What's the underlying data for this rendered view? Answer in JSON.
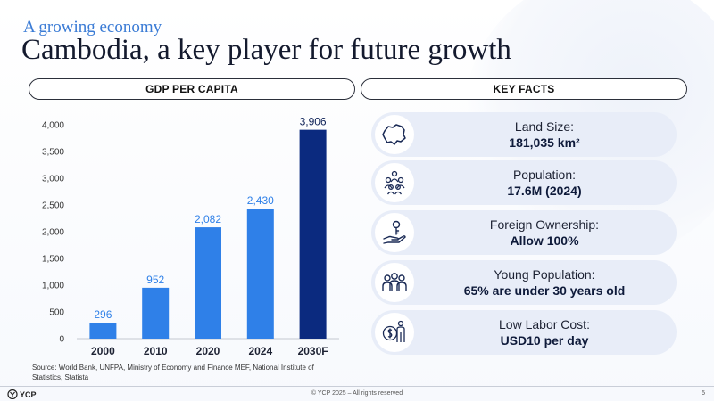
{
  "header": {
    "subtitle": "A growing economy",
    "title": "Cambodia, a key player for future growth"
  },
  "sections": {
    "gdp_label": "GDP PER CAPITA",
    "facts_label": "KEY FACTS"
  },
  "chart_data": {
    "type": "bar",
    "categories": [
      "2000",
      "2010",
      "2020",
      "2024",
      "2030F"
    ],
    "values": [
      296,
      952,
      2082,
      2430,
      3906
    ],
    "value_labels": [
      "296",
      "952",
      "2,082",
      "2,430",
      "3,906"
    ],
    "ylim": [
      0,
      4000
    ],
    "yticks": [
      0,
      500,
      1000,
      1500,
      2000,
      2500,
      3000,
      3500,
      4000
    ],
    "ytick_labels": [
      "0",
      "500",
      "1,000",
      "1,500",
      "2,000",
      "2,500",
      "3,000",
      "3,500",
      "4,000"
    ],
    "grid": false,
    "colors": {
      "bar": "#2f80e8",
      "highlight_bar": "#0b2a7f",
      "value_label": "#2f80e8",
      "highlight_value_label": "#0b1f55"
    },
    "highlight_index": 4
  },
  "source": "Source: World Bank, UNFPA, Ministry of Economy and Finance MEF, National Institute of Statistics, Statista",
  "facts": [
    {
      "label": "Land Size:",
      "value": "181,035 km²",
      "icon": "map-icon"
    },
    {
      "label": "Population:",
      "value": "17.6M (2024)",
      "icon": "people-icon"
    },
    {
      "label": "Foreign Ownership:",
      "value": "Allow 100%",
      "icon": "hand-key-icon"
    },
    {
      "label": "Young Population:",
      "value": "65% are under 30 years old",
      "icon": "group-icon"
    },
    {
      "label": "Low Labor Cost:",
      "value": "USD10 per day",
      "icon": "worker-cost-icon"
    }
  ],
  "footer": {
    "logo_text": "YCP",
    "copyright": "© YCP 2025 – All rights reserved",
    "page_number": "5"
  }
}
